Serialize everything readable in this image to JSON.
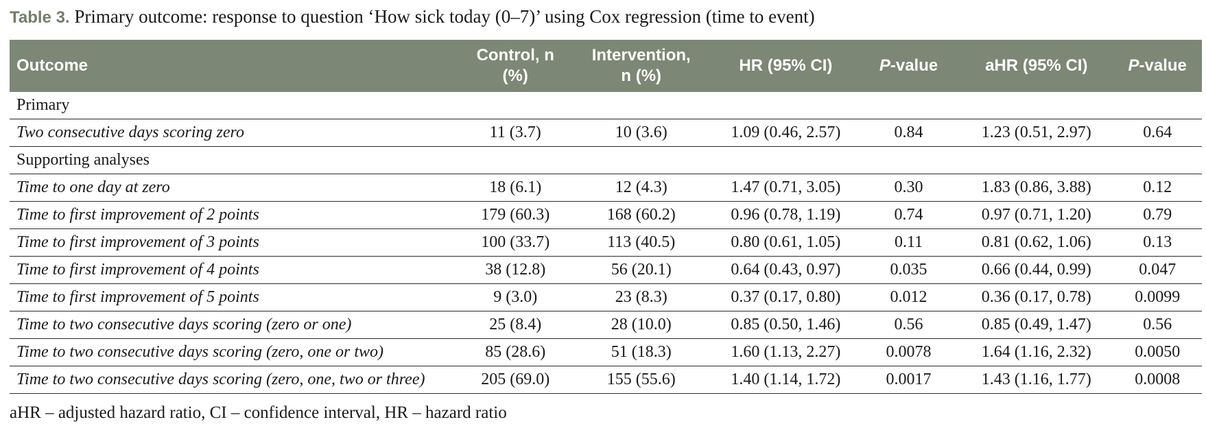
{
  "caption": {
    "label": "Table 3.",
    "text": "Primary outcome: response to question ‘How sick today (0–7)’ using Cox regression (time to event)"
  },
  "table": {
    "headers": {
      "outcome": "Outcome",
      "control_line1": "Control, n",
      "control_line2": "(%)",
      "intervention_line1": "Intervention,",
      "intervention_line2": "n (%)",
      "hr": "HR (95% CI)",
      "p_italic": "P",
      "p_suffix": "-value",
      "ahr": "aHR (95% CI)",
      "p2_italic": "P",
      "p2_suffix": "-value"
    },
    "sections": {
      "primary": "Primary",
      "supporting": "Supporting analyses"
    },
    "rows": [
      {
        "outcome": "Two consecutive days scoring zero",
        "control": "11 (3.7)",
        "intervention": "10 (3.6)",
        "hr": "1.09 (0.46, 2.57)",
        "p": "0.84",
        "ahr": "1.23 (0.51, 2.97)",
        "ap": "0.64"
      },
      {
        "outcome": "Time to one day at zero",
        "control": "18 (6.1)",
        "intervention": "12 (4.3)",
        "hr": "1.47 (0.71, 3.05)",
        "p": "0.30",
        "ahr": "1.83 (0.86, 3.88)",
        "ap": "0.12"
      },
      {
        "outcome": "Time to first improvement of 2 points",
        "control": "179 (60.3)",
        "intervention": "168 (60.2)",
        "hr": "0.96 (0.78, 1.19)",
        "p": "0.74",
        "ahr": "0.97 (0.71, 1.20)",
        "ap": "0.79"
      },
      {
        "outcome": "Time to first improvement of 3 points",
        "control": "100 (33.7)",
        "intervention": "113 (40.5)",
        "hr": "0.80 (0.61, 1.05)",
        "p": "0.11",
        "ahr": "0.81 (0.62, 1.06)",
        "ap": "0.13"
      },
      {
        "outcome": "Time to first improvement of 4 points",
        "control": "38 (12.8)",
        "intervention": "56 (20.1)",
        "hr": "0.64 (0.43, 0.97)",
        "p": "0.035",
        "ahr": "0.66 (0.44, 0.99)",
        "ap": "0.047"
      },
      {
        "outcome": "Time to first improvement of 5 points",
        "control": "9 (3.0)",
        "intervention": "23 (8.3)",
        "hr": "0.37 (0.17, 0.80)",
        "p": "0.012",
        "ahr": "0.36 (0.17, 0.78)",
        "ap": "0.0099"
      },
      {
        "outcome": "Time to two consecutive days scoring (zero or one)",
        "control": "25 (8.4)",
        "intervention": "28 (10.0)",
        "hr": "0.85 (0.50, 1.46)",
        "p": "0.56",
        "ahr": "0.85 (0.49, 1.47)",
        "ap": "0.56"
      },
      {
        "outcome": "Time to two consecutive days scoring (zero, one or two)",
        "control": "85 (28.6)",
        "intervention": "51 (18.3)",
        "hr": "1.60 (1.13, 2.27)",
        "p": "0.0078",
        "ahr": "1.64 (1.16, 2.32)",
        "ap": "0.0050"
      },
      {
        "outcome": "Time to two consecutive days scoring (zero, one, two or three)",
        "control": "205 (69.0)",
        "intervention": "155 (55.6)",
        "hr": "1.40 (1.14, 1.72)",
        "p": "0.0017",
        "ahr": "1.43 (1.16, 1.77)",
        "ap": "0.0008"
      }
    ]
  },
  "footnote": "aHR – adjusted hazard ratio, CI – confidence interval, HR – hazard ratio",
  "colors": {
    "header_bg": "#7c8775",
    "caption_label": "#737d6a"
  }
}
